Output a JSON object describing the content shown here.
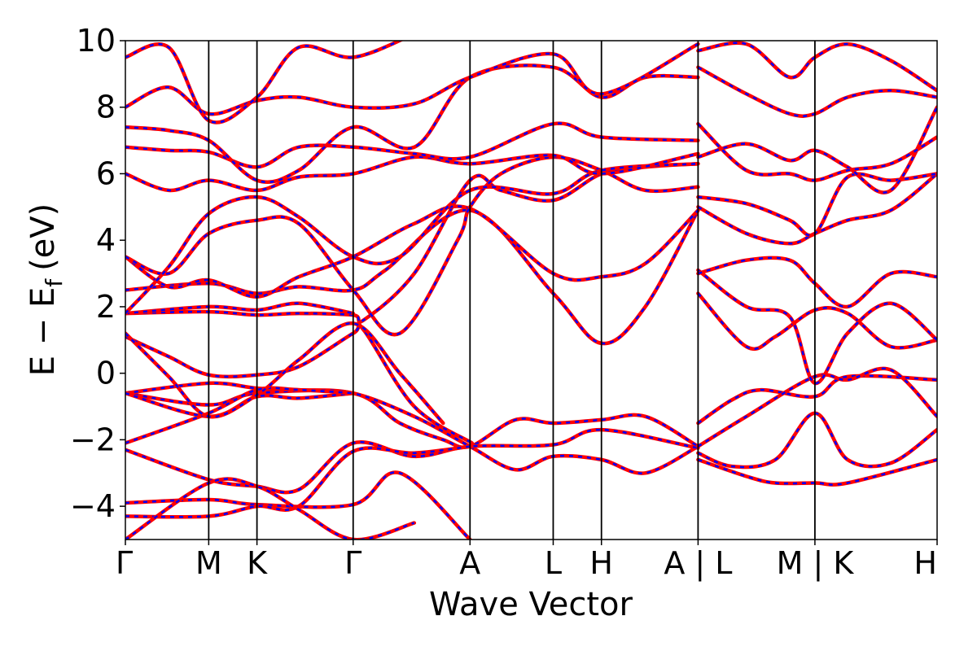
{
  "chart_data": {
    "type": "line",
    "title": "",
    "xlabel": "Wave Vector",
    "ylabel": {
      "main": "E − E",
      "sub": "f",
      "unit": "(eV)"
    },
    "ylim": [
      -5,
      10
    ],
    "yticks": [
      -4,
      -2,
      0,
      2,
      4,
      6,
      8,
      10
    ],
    "ytick_labels": [
      "−4",
      "−2",
      "0",
      "2",
      "4",
      "6",
      "8",
      "10"
    ],
    "kpath_labels": [
      "Γ",
      "M",
      "K",
      "Γ",
      "A",
      "L",
      "H",
      "A | L",
      "M | K",
      "H"
    ],
    "kpath_positions": [
      0,
      0.577,
      0.911,
      1.577,
      2.386,
      2.962,
      3.296,
      3.965,
      4.774,
      5.62
    ],
    "grid": false,
    "legend": "none",
    "colors": {
      "dft": "#ff0000",
      "fit": "#0000ff",
      "axis": "#000000"
    },
    "series": [
      {
        "points": [
          [
            0,
            -0.6
          ],
          [
            0.577,
            -0.95
          ],
          [
            0.911,
            -0.6
          ],
          [
            1.577,
            -0.6
          ],
          [
            1.9,
            -1.5
          ],
          [
            2.2,
            -2.0
          ],
          [
            2.386,
            -2.2
          ],
          [
            2.7,
            -1.4
          ],
          [
            2.962,
            -1.5
          ],
          [
            3.296,
            -1.4
          ],
          [
            3.6,
            -1.3
          ],
          [
            3.965,
            -2.2
          ]
        ]
      },
      {
        "points": [
          [
            0,
            -0.6
          ],
          [
            0.577,
            -0.3
          ],
          [
            0.911,
            -0.45
          ],
          [
            1.2,
            -0.5
          ],
          [
            1.577,
            -0.6
          ],
          [
            2.0,
            -1.3
          ],
          [
            2.386,
            -2.2
          ],
          [
            2.7,
            -2.9
          ],
          [
            2.962,
            -2.5
          ],
          [
            3.296,
            -2.6
          ],
          [
            3.6,
            -3.0
          ],
          [
            3.965,
            -2.2
          ]
        ]
      },
      {
        "points": [
          [
            0,
            -0.6
          ],
          [
            0.577,
            -1.3
          ],
          [
            0.911,
            -0.7
          ],
          [
            1.2,
            -0.75
          ],
          [
            1.577,
            -0.6
          ]
        ]
      },
      {
        "points": [
          [
            0,
            -2.1
          ],
          [
            0.577,
            -1.2
          ],
          [
            0.911,
            -0.5
          ],
          [
            1.2,
            -0.5
          ],
          [
            1.577,
            -0.6
          ]
        ]
      },
      {
        "points": [
          [
            0,
            -2.3
          ],
          [
            0.577,
            -3.2
          ],
          [
            0.911,
            -3.4
          ],
          [
            1.2,
            -3.5
          ],
          [
            1.577,
            -2.1
          ],
          [
            2.0,
            -2.5
          ],
          [
            2.386,
            -2.2
          ],
          [
            2.962,
            -2.15
          ],
          [
            3.296,
            -1.7
          ],
          [
            3.965,
            -2.25
          ]
        ]
      },
      {
        "points": [
          [
            0,
            -3.9
          ],
          [
            0.577,
            -3.8
          ],
          [
            0.911,
            -3.95
          ],
          [
            1.577,
            -3.95
          ],
          [
            1.9,
            -3.0
          ],
          [
            2.386,
            -5.0
          ]
        ]
      },
      {
        "points": [
          [
            0,
            -4.3
          ],
          [
            0.577,
            -4.3
          ],
          [
            0.911,
            -4.0
          ],
          [
            1.2,
            -4.0
          ],
          [
            1.577,
            -2.35
          ],
          [
            2.0,
            -2.4
          ],
          [
            2.386,
            -2.2
          ]
        ]
      },
      {
        "points": [
          [
            0,
            -5.0
          ],
          [
            0.577,
            -3.3
          ],
          [
            0.911,
            -3.4
          ],
          [
            1.2,
            -4.1
          ],
          [
            1.577,
            -5.0
          ],
          [
            2.0,
            -4.5
          ]
        ]
      },
      {
        "points": [
          [
            0,
            1.1
          ],
          [
            0.3,
            0.5
          ],
          [
            0.577,
            -0.05
          ],
          [
            0.911,
            -0.05
          ],
          [
            1.2,
            0.2
          ],
          [
            1.577,
            1.2
          ],
          [
            1.65,
            1.3
          ],
          [
            2.0,
            -1.0
          ],
          [
            2.4,
            -2.1
          ]
        ]
      },
      {
        "points": [
          [
            0,
            1.2
          ],
          [
            0.3,
            -0.1
          ],
          [
            0.577,
            -1.3
          ],
          [
            0.911,
            -0.65
          ],
          [
            1.2,
            0.4
          ],
          [
            1.577,
            1.5
          ],
          [
            1.9,
            0.0
          ],
          [
            2.2,
            -1.5
          ]
        ]
      },
      {
        "points": [
          [
            0,
            1.8
          ],
          [
            0.577,
            1.85
          ],
          [
            0.911,
            1.75
          ],
          [
            1.2,
            1.8
          ],
          [
            1.577,
            1.75
          ],
          [
            1.65,
            1.6
          ],
          [
            2.0,
            3.0
          ],
          [
            2.386,
            5.8
          ],
          [
            2.6,
            5.5
          ],
          [
            2.962,
            5.2
          ],
          [
            3.296,
            6.0
          ],
          [
            3.6,
            6.2
          ],
          [
            3.965,
            6.3
          ]
        ]
      },
      {
        "points": [
          [
            0,
            1.8
          ],
          [
            0.577,
            2.0
          ],
          [
            0.911,
            1.9
          ],
          [
            1.2,
            2.1
          ],
          [
            1.577,
            1.8
          ]
        ]
      },
      {
        "points": [
          [
            0,
            2.5
          ],
          [
            0.577,
            2.7
          ],
          [
            0.911,
            2.4
          ],
          [
            1.2,
            2.6
          ],
          [
            1.577,
            2.5
          ],
          [
            1.8,
            3.1
          ],
          [
            2.386,
            4.9
          ],
          [
            2.962,
            2.4
          ],
          [
            3.296,
            0.9
          ],
          [
            3.6,
            2.0
          ],
          [
            3.965,
            4.9
          ]
        ]
      },
      {
        "points": [
          [
            0,
            3.5
          ],
          [
            0.3,
            2.6
          ],
          [
            0.577,
            2.8
          ],
          [
            0.911,
            2.3
          ],
          [
            1.2,
            2.9
          ],
          [
            1.577,
            3.5
          ],
          [
            2.0,
            4.5
          ],
          [
            2.386,
            4.95
          ],
          [
            2.962,
            3.0
          ],
          [
            3.296,
            2.9
          ],
          [
            3.6,
            3.3
          ],
          [
            3.965,
            4.9
          ]
        ]
      },
      {
        "points": [
          [
            0,
            3.5
          ],
          [
            0.3,
            3.0
          ],
          [
            0.577,
            4.2
          ],
          [
            0.911,
            4.6
          ],
          [
            1.2,
            4.5
          ],
          [
            1.577,
            2.5
          ],
          [
            1.9,
            1.2
          ],
          [
            2.3,
            4.0
          ],
          [
            2.386,
            5.0
          ],
          [
            2.6,
            6.0
          ],
          [
            2.962,
            6.5
          ],
          [
            3.296,
            6.1
          ],
          [
            3.6,
            5.5
          ],
          [
            3.965,
            5.6
          ]
        ]
      },
      {
        "points": [
          [
            0,
            1.8
          ],
          [
            0.3,
            3.2
          ],
          [
            0.577,
            4.8
          ],
          [
            0.911,
            5.3
          ],
          [
            1.2,
            4.7
          ],
          [
            1.577,
            3.5
          ],
          [
            1.9,
            3.5
          ],
          [
            2.386,
            5.5
          ],
          [
            2.962,
            5.4
          ],
          [
            3.296,
            6.1
          ],
          [
            3.965,
            6.3
          ]
        ]
      },
      {
        "points": [
          [
            0,
            6.0
          ],
          [
            0.3,
            5.5
          ],
          [
            0.577,
            5.8
          ],
          [
            0.911,
            5.5
          ],
          [
            1.2,
            5.9
          ],
          [
            1.577,
            6.0
          ],
          [
            2.0,
            6.5
          ],
          [
            2.386,
            6.3
          ],
          [
            2.962,
            6.55
          ],
          [
            3.296,
            6.0
          ],
          [
            3.965,
            6.6
          ]
        ]
      },
      {
        "points": [
          [
            0,
            6.8
          ],
          [
            0.3,
            6.7
          ],
          [
            0.577,
            6.65
          ],
          [
            0.911,
            6.2
          ],
          [
            1.2,
            6.8
          ],
          [
            1.577,
            6.8
          ],
          [
            2.0,
            6.6
          ],
          [
            2.386,
            6.5
          ],
          [
            2.962,
            7.5
          ],
          [
            3.296,
            7.1
          ],
          [
            3.965,
            7.0
          ]
        ]
      },
      {
        "points": [
          [
            0,
            7.4
          ],
          [
            0.3,
            7.3
          ],
          [
            0.577,
            7.0
          ],
          [
            0.911,
            5.8
          ],
          [
            1.2,
            6.1
          ],
          [
            1.577,
            7.4
          ],
          [
            2.0,
            6.8
          ],
          [
            2.386,
            8.9
          ],
          [
            2.962,
            9.2
          ],
          [
            3.296,
            8.3
          ],
          [
            3.6,
            8.9
          ],
          [
            3.965,
            8.9
          ]
        ]
      },
      {
        "points": [
          [
            0,
            8.0
          ],
          [
            0.3,
            8.6
          ],
          [
            0.577,
            7.8
          ],
          [
            0.911,
            8.2
          ],
          [
            1.2,
            8.3
          ],
          [
            1.577,
            8.0
          ],
          [
            2.0,
            8.1
          ],
          [
            2.386,
            8.9
          ],
          [
            2.962,
            9.6
          ],
          [
            3.296,
            8.4
          ],
          [
            3.965,
            9.9
          ]
        ]
      },
      {
        "points": [
          [
            0,
            9.5
          ],
          [
            0.3,
            9.8
          ],
          [
            0.577,
            7.6
          ],
          [
            0.911,
            8.3
          ],
          [
            1.2,
            9.8
          ],
          [
            1.577,
            9.5
          ],
          [
            2.0,
            10.2
          ]
        ]
      },
      {
        "points": [
          [
            3.965,
            -1.5
          ],
          [
            4.2,
            -0.8
          ],
          [
            4.4,
            -0.5
          ],
          [
            4.774,
            -0.7
          ],
          [
            5.0,
            -0.1
          ],
          [
            5.62,
            -0.2
          ]
        ]
      },
      {
        "points": [
          [
            3.965,
            -2.6
          ],
          [
            4.3,
            -3.1
          ],
          [
            4.5,
            -3.3
          ],
          [
            4.774,
            -3.3
          ],
          [
            5.0,
            -3.3
          ],
          [
            5.62,
            -2.6
          ]
        ]
      },
      {
        "points": [
          [
            3.965,
            -2.4
          ],
          [
            4.2,
            -2.8
          ],
          [
            4.5,
            -2.6
          ],
          [
            4.774,
            -1.2
          ],
          [
            5.0,
            -2.6
          ],
          [
            5.3,
            -2.7
          ],
          [
            5.62,
            -1.7
          ]
        ]
      },
      {
        "points": [
          [
            3.965,
            -2.2
          ],
          [
            4.3,
            -1.3
          ],
          [
            4.774,
            -0.1
          ],
          [
            5.0,
            -0.2
          ],
          [
            5.3,
            0.1
          ],
          [
            5.62,
            -1.3
          ]
        ]
      },
      {
        "points": [
          [
            3.965,
            2.4
          ],
          [
            4.3,
            0.8
          ],
          [
            4.5,
            1.1
          ],
          [
            4.774,
            1.9
          ],
          [
            5.0,
            1.8
          ],
          [
            5.3,
            0.8
          ],
          [
            5.62,
            1.0
          ]
        ]
      },
      {
        "points": [
          [
            3.965,
            3.1
          ],
          [
            4.3,
            2.0
          ],
          [
            4.6,
            1.7
          ],
          [
            4.774,
            -0.3
          ],
          [
            5.0,
            1.2
          ],
          [
            5.3,
            2.1
          ],
          [
            5.62,
            1.0
          ]
        ]
      },
      {
        "points": [
          [
            3.965,
            3.0
          ],
          [
            4.3,
            3.4
          ],
          [
            4.6,
            3.4
          ],
          [
            4.774,
            2.7
          ],
          [
            5.0,
            2.0
          ],
          [
            5.3,
            3.0
          ],
          [
            5.62,
            2.9
          ]
        ]
      },
      {
        "points": [
          [
            3.965,
            5.0
          ],
          [
            4.3,
            4.2
          ],
          [
            4.6,
            3.9
          ],
          [
            4.774,
            4.2
          ],
          [
            5.0,
            4.6
          ],
          [
            5.3,
            4.9
          ],
          [
            5.62,
            6.0
          ]
        ]
      },
      {
        "points": [
          [
            3.965,
            5.3
          ],
          [
            4.3,
            5.1
          ],
          [
            4.6,
            4.6
          ],
          [
            4.774,
            4.2
          ],
          [
            5.0,
            5.9
          ],
          [
            5.3,
            5.8
          ],
          [
            5.62,
            6.0
          ]
        ]
      },
      {
        "points": [
          [
            3.965,
            6.5
          ],
          [
            4.3,
            6.9
          ],
          [
            4.6,
            6.4
          ],
          [
            4.774,
            6.7
          ],
          [
            5.0,
            6.2
          ],
          [
            5.3,
            5.5
          ],
          [
            5.62,
            8.0
          ]
        ]
      },
      {
        "points": [
          [
            3.965,
            7.5
          ],
          [
            4.3,
            6.1
          ],
          [
            4.6,
            6.0
          ],
          [
            4.774,
            5.8
          ],
          [
            5.0,
            6.1
          ],
          [
            5.3,
            6.3
          ],
          [
            5.62,
            7.1
          ]
        ]
      },
      {
        "points": [
          [
            3.965,
            9.2
          ],
          [
            4.3,
            8.4
          ],
          [
            4.6,
            7.8
          ],
          [
            4.774,
            7.8
          ],
          [
            5.0,
            8.3
          ],
          [
            5.3,
            8.5
          ],
          [
            5.62,
            8.3
          ]
        ]
      },
      {
        "points": [
          [
            3.965,
            9.7
          ],
          [
            4.3,
            9.9
          ],
          [
            4.6,
            8.9
          ],
          [
            4.774,
            9.5
          ],
          [
            5.0,
            9.9
          ],
          [
            5.3,
            9.4
          ],
          [
            5.62,
            8.5
          ]
        ]
      }
    ]
  }
}
